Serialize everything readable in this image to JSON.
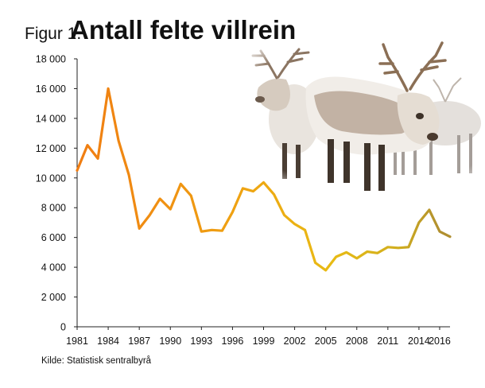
{
  "header": {
    "figure_label": "Figur 1.",
    "title": "Antall felte villrein"
  },
  "source": "Kilde: Statistisk sentralbyrå",
  "photo": {
    "icon": "reindeer-herd-photo"
  },
  "chart_data": {
    "type": "line",
    "title": "Antall felte villrein",
    "xlabel": "",
    "ylabel": "",
    "xlim": [
      1981,
      2017
    ],
    "ylim": [
      0,
      18000
    ],
    "x_ticks": [
      1981,
      1984,
      1987,
      1990,
      1993,
      1996,
      1999,
      2002,
      2005,
      2008,
      2011,
      2014,
      2016
    ],
    "y_ticks": [
      0,
      2000,
      4000,
      6000,
      8000,
      10000,
      12000,
      14000,
      16000,
      18000
    ],
    "y_tick_labels": [
      "0",
      "2 000",
      "4 000",
      "6 000",
      "8 000",
      "10 000",
      "12 000",
      "14 000",
      "16 000",
      "18 000"
    ],
    "grid": false,
    "legend": "none",
    "gradient_colors": [
      "#f07d12",
      "#efa312",
      "#e8bb14",
      "#d1ae1e",
      "#b08f30"
    ],
    "series": [
      {
        "x": [
          1981,
          1982,
          1983,
          1984,
          1985,
          1986,
          1987,
          1988,
          1989,
          1990,
          1991,
          1992,
          1993,
          1994,
          1995,
          1996,
          1997,
          1998,
          1999,
          2000,
          2001,
          2002,
          2003,
          2004,
          2005,
          2006,
          2007,
          2008,
          2009,
          2010,
          2011,
          2012,
          2013,
          2014,
          2015,
          2016,
          2017
        ],
        "values": [
          10500,
          12200,
          11300,
          16000,
          12500,
          10200,
          6600,
          7500,
          8600,
          7900,
          9600,
          8800,
          6400,
          6500,
          6450,
          7700,
          9300,
          9100,
          9700,
          8900,
          7500,
          6900,
          6500,
          4300,
          3800,
          4700,
          5000,
          4600,
          5050,
          4950,
          5350,
          5300,
          5350,
          7000,
          7850,
          6400,
          6050
        ]
      }
    ]
  }
}
